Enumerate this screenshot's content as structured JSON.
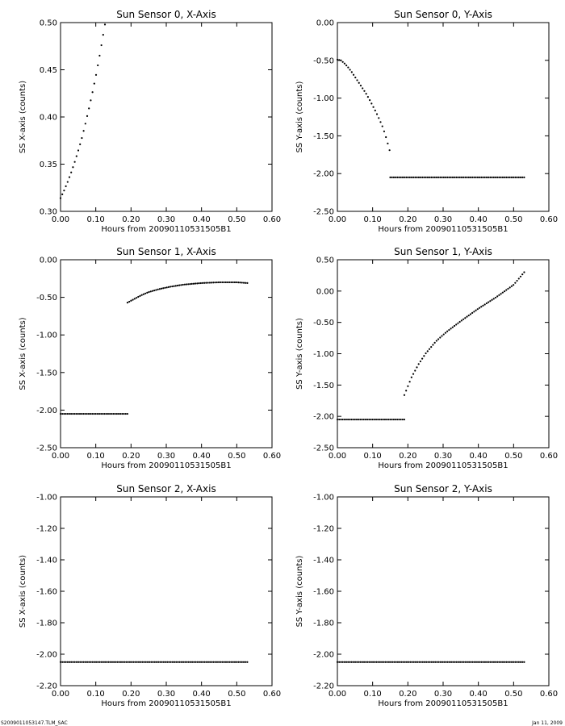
{
  "footer": {
    "file_label": "S2009011053147.TLM_SAC",
    "date_label": "Jan 11, 2009"
  },
  "chart_data": [
    {
      "type": "scatter",
      "title": "Sun Sensor 0, X-Axis",
      "xlabel": "Hours from  20090110531505B1",
      "ylabel": "SS X-axis (counts)",
      "xlim": [
        0,
        0.6
      ],
      "ylim": [
        0.3,
        0.5
      ],
      "xticks": [
        0,
        0.1,
        0.2,
        0.3,
        0.4,
        0.5,
        0.6
      ],
      "xtick_labels": [
        "0.00",
        "0.10",
        "0.20",
        "0.30",
        "0.40",
        "0.50",
        "0.60"
      ],
      "yticks": [
        0.3,
        0.35,
        0.4,
        0.45,
        0.5
      ],
      "ytick_labels": [
        "0.30",
        "0.35",
        "0.40",
        "0.45",
        "0.50"
      ],
      "series": [
        {
          "x": [
            0.0,
            0.01,
            0.02,
            0.03,
            0.04,
            0.05,
            0.06,
            0.07,
            0.08,
            0.09,
            0.1,
            0.11,
            0.12,
            0.126
          ],
          "y": [
            0.314,
            0.322,
            0.331,
            0.341,
            0.352,
            0.364,
            0.377,
            0.392,
            0.408,
            0.425,
            0.443,
            0.463,
            0.485,
            0.498
          ]
        }
      ]
    },
    {
      "type": "scatter",
      "title": "Sun Sensor 0, Y-Axis",
      "xlabel": "Hours from  20090110531505B1",
      "ylabel": "SS Y-axis (counts)",
      "xlim": [
        0,
        0.6
      ],
      "ylim": [
        -2.5,
        0.0
      ],
      "xticks": [
        0,
        0.1,
        0.2,
        0.3,
        0.4,
        0.5,
        0.6
      ],
      "xtick_labels": [
        "0.00",
        "0.10",
        "0.20",
        "0.30",
        "0.40",
        "0.50",
        "0.60"
      ],
      "yticks": [
        -2.5,
        -2.0,
        -1.5,
        -1.0,
        -0.5,
        0.0
      ],
      "ytick_labels": [
        "-2.50",
        "-2.00",
        "-1.50",
        "-1.00",
        "-0.50",
        "0.00"
      ],
      "series": [
        {
          "x": [
            0.0,
            0.01,
            0.02,
            0.03,
            0.04,
            0.05,
            0.06,
            0.07,
            0.08,
            0.09,
            0.1,
            0.11,
            0.12,
            0.13,
            0.14,
            0.148
          ],
          "y": [
            -0.49,
            -0.5,
            -0.54,
            -0.59,
            -0.65,
            -0.72,
            -0.79,
            -0.86,
            -0.93,
            -1.01,
            -1.1,
            -1.19,
            -1.29,
            -1.4,
            -1.55,
            -1.69
          ]
        },
        {
          "x": [
            0.15,
            0.2,
            0.25,
            0.3,
            0.35,
            0.4,
            0.45,
            0.5,
            0.53
          ],
          "y": [
            -2.05,
            -2.05,
            -2.05,
            -2.05,
            -2.05,
            -2.05,
            -2.05,
            -2.05,
            -2.05
          ]
        }
      ]
    },
    {
      "type": "scatter",
      "title": "Sun Sensor 1, X-Axis",
      "xlabel": "Hours from  20090110531505B1",
      "ylabel": "SS X-axis (counts)",
      "xlim": [
        0,
        0.6
      ],
      "ylim": [
        -2.5,
        0.0
      ],
      "xticks": [
        0,
        0.1,
        0.2,
        0.3,
        0.4,
        0.5,
        0.6
      ],
      "xtick_labels": [
        "0.00",
        "0.10",
        "0.20",
        "0.30",
        "0.40",
        "0.50",
        "0.60"
      ],
      "yticks": [
        -2.5,
        -2.0,
        -1.5,
        -1.0,
        -0.5,
        0.0
      ],
      "ytick_labels": [
        "-2.50",
        "-2.00",
        "-1.50",
        "-1.00",
        "-0.50",
        "0.00"
      ],
      "series": [
        {
          "x": [
            0.0,
            0.05,
            0.1,
            0.15,
            0.19
          ],
          "y": [
            -2.05,
            -2.05,
            -2.05,
            -2.05,
            -2.05
          ]
        },
        {
          "x": [
            0.19,
            0.21,
            0.23,
            0.25,
            0.28,
            0.31,
            0.35,
            0.4,
            0.45,
            0.5,
            0.53
          ],
          "y": [
            -0.57,
            -0.52,
            -0.47,
            -0.43,
            -0.39,
            -0.36,
            -0.33,
            -0.31,
            -0.3,
            -0.3,
            -0.31
          ]
        }
      ]
    },
    {
      "type": "scatter",
      "title": "Sun Sensor 1, Y-Axis",
      "xlabel": "Hours from  20090110531505B1",
      "ylabel": "SS Y-axis (counts)",
      "xlim": [
        0,
        0.6
      ],
      "ylim": [
        -2.5,
        0.5
      ],
      "xticks": [
        0,
        0.1,
        0.2,
        0.3,
        0.4,
        0.5,
        0.6
      ],
      "xtick_labels": [
        "0.00",
        "0.10",
        "0.20",
        "0.30",
        "0.40",
        "0.50",
        "0.60"
      ],
      "yticks": [
        -2.5,
        -2.0,
        -1.5,
        -1.0,
        -0.5,
        0.0,
        0.5
      ],
      "ytick_labels": [
        "-2.50",
        "-2.00",
        "-1.50",
        "-1.00",
        "-0.50",
        "0.00",
        "0.50"
      ],
      "series": [
        {
          "x": [
            0.0,
            0.05,
            0.1,
            0.15,
            0.19
          ],
          "y": [
            -2.05,
            -2.05,
            -2.05,
            -2.05,
            -2.05
          ]
        },
        {
          "x": [
            0.19,
            0.21,
            0.23,
            0.25,
            0.28,
            0.31,
            0.35,
            0.4,
            0.45,
            0.5,
            0.53
          ],
          "y": [
            -1.66,
            -1.38,
            -1.17,
            -1.0,
            -0.8,
            -0.65,
            -0.48,
            -0.28,
            -0.1,
            0.1,
            0.3
          ]
        }
      ]
    },
    {
      "type": "scatter",
      "title": "Sun Sensor 2, X-Axis",
      "xlabel": "Hours from  20090110531505B1",
      "ylabel": "SS X-axis (counts)",
      "xlim": [
        0,
        0.6
      ],
      "ylim": [
        -2.2,
        -1.0
      ],
      "xticks": [
        0,
        0.1,
        0.2,
        0.3,
        0.4,
        0.5,
        0.6
      ],
      "xtick_labels": [
        "0.00",
        "0.10",
        "0.20",
        "0.30",
        "0.40",
        "0.50",
        "0.60"
      ],
      "yticks": [
        -2.2,
        -2.0,
        -1.8,
        -1.6,
        -1.4,
        -1.2,
        -1.0
      ],
      "ytick_labels": [
        "-2.20",
        "-2.00",
        "-1.80",
        "-1.60",
        "-1.40",
        "-1.20",
        "-1.00"
      ],
      "series": [
        {
          "x": [
            0.0,
            0.1,
            0.2,
            0.3,
            0.4,
            0.5,
            0.53
          ],
          "y": [
            -2.05,
            -2.05,
            -2.05,
            -2.05,
            -2.05,
            -2.05,
            -2.05
          ]
        }
      ]
    },
    {
      "type": "scatter",
      "title": "Sun Sensor 2, Y-Axis",
      "xlabel": "Hours from  20090110531505B1",
      "ylabel": "SS Y-axis (counts)",
      "xlim": [
        0,
        0.6
      ],
      "ylim": [
        -2.2,
        -1.0
      ],
      "xticks": [
        0,
        0.1,
        0.2,
        0.3,
        0.4,
        0.5,
        0.6
      ],
      "xtick_labels": [
        "0.00",
        "0.10",
        "0.20",
        "0.30",
        "0.40",
        "0.50",
        "0.60"
      ],
      "yticks": [
        -2.2,
        -2.0,
        -1.8,
        -1.6,
        -1.4,
        -1.2,
        -1.0
      ],
      "ytick_labels": [
        "-2.20",
        "-2.00",
        "-1.80",
        "-1.60",
        "-1.40",
        "-1.20",
        "-1.00"
      ],
      "series": [
        {
          "x": [
            0.0,
            0.1,
            0.2,
            0.3,
            0.4,
            0.5,
            0.53
          ],
          "y": [
            -2.05,
            -2.05,
            -2.05,
            -2.05,
            -2.05,
            -2.05,
            -2.05
          ]
        }
      ]
    }
  ]
}
